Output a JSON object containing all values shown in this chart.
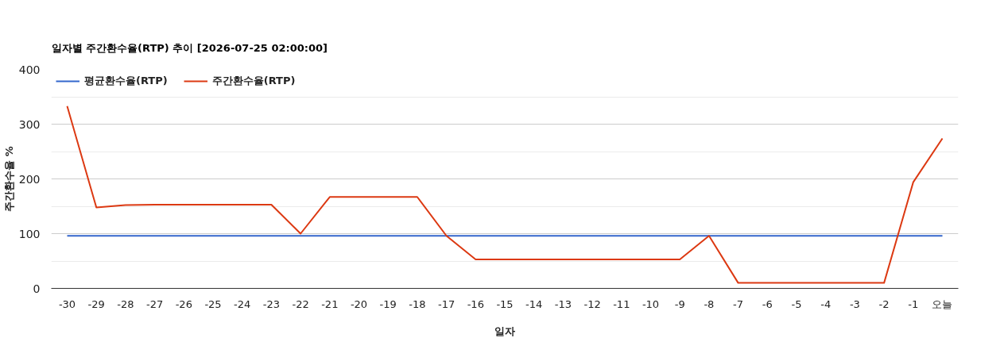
{
  "chart_data": {
    "type": "line",
    "title": "일자별 주간환수율(RTP) 추이 [2026-07-25 02:00:00]",
    "xlabel": "일자",
    "ylabel": "주간환수율 %",
    "categories": [
      "-30",
      "-29",
      "-28",
      "-27",
      "-26",
      "-25",
      "-24",
      "-23",
      "-22",
      "-21",
      "-20",
      "-19",
      "-18",
      "-17",
      "-16",
      "-15",
      "-14",
      "-13",
      "-12",
      "-11",
      "-10",
      "-9",
      "-8",
      "-7",
      "-6",
      "-5",
      "-4",
      "-3",
      "-2",
      "-1",
      "오늘"
    ],
    "series": [
      {
        "name": "평균환수율(RTP)",
        "color": "#3366cc",
        "values": [
          96,
          96,
          96,
          96,
          96,
          96,
          96,
          96,
          96,
          96,
          96,
          96,
          96,
          96,
          96,
          96,
          96,
          96,
          96,
          96,
          96,
          96,
          96,
          96,
          96,
          96,
          96,
          96,
          96,
          96,
          96
        ]
      },
      {
        "name": "주간환수율(RTP)",
        "color": "#dc3912",
        "values": [
          333,
          148,
          152,
          153,
          153,
          153,
          153,
          153,
          100,
          167,
          167,
          167,
          167,
          96,
          53,
          53,
          53,
          53,
          53,
          53,
          53,
          53,
          96,
          10,
          10,
          10,
          10,
          10,
          10,
          194,
          274
        ]
      }
    ],
    "ylim": [
      0,
      400
    ],
    "yticks": [
      0,
      100,
      200,
      300,
      400
    ],
    "grid": "y",
    "legend": "top left"
  }
}
